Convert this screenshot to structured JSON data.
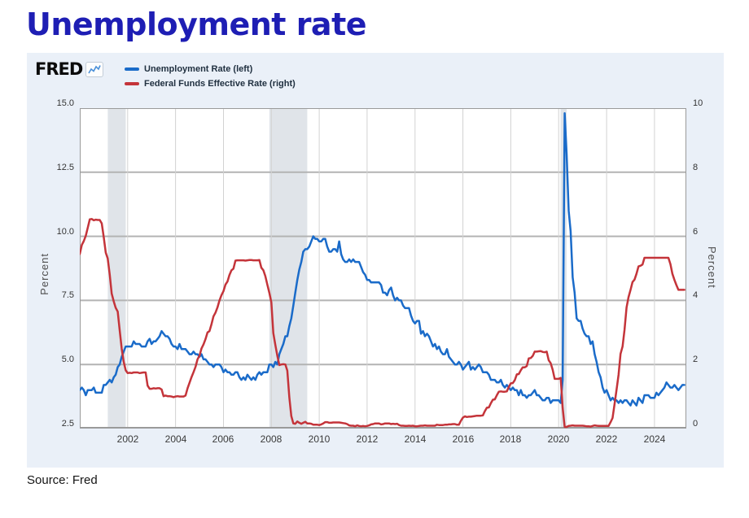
{
  "page": {
    "title": "Unemployment rate",
    "source": "Source: Fred"
  },
  "panel": {
    "logo_text": "FRED",
    "logo_icon": "sparkline-icon"
  },
  "chart_data": {
    "type": "line",
    "title": "Unemployment rate",
    "x_range": [
      2000,
      2025.33
    ],
    "points_start_year": 2000,
    "points_per_year": 12,
    "x_tick_values": [
      2002,
      2004,
      2006,
      2008,
      2010,
      2012,
      2014,
      2016,
      2018,
      2020,
      2022,
      2024
    ],
    "x_tick_labels": [
      "2002",
      "2004",
      "2006",
      "2008",
      "2010",
      "2012",
      "2014",
      "2016",
      "2018",
      "2020",
      "2022",
      "2024"
    ],
    "left_axis": {
      "label": "Percent",
      "min": 2.5,
      "max": 15.0,
      "tick_values": [
        15.0,
        12.5,
        10.0,
        7.5,
        5.0,
        2.5
      ],
      "tick_labels": [
        "15.0",
        "12.5",
        "10.0",
        "7.5",
        "5.0",
        "2.5"
      ]
    },
    "right_axis": {
      "label": "Percent",
      "min": 0,
      "max": 10,
      "tick_values": [
        10,
        8,
        6,
        4,
        2,
        0
      ],
      "tick_labels": [
        "10",
        "8",
        "6",
        "4",
        "2",
        "0"
      ]
    },
    "grid": "horizontal-and-vertical",
    "legend_position": "top-left",
    "recessions": [
      [
        2001.17,
        2001.92
      ],
      [
        2007.92,
        2009.5
      ],
      [
        2020.08,
        2020.33
      ]
    ],
    "colors": {
      "panel_bg": "#eaf0f8",
      "plot_bg": "#ffffff",
      "recession_band": "#e0e4e9",
      "hgrid": "#b3b3b3",
      "vgrid": "#d2d2d2",
      "plot_border": "#9a9a9a",
      "axis_line": "#9a9a9a",
      "title": "#1e1eb4",
      "unemployment_blue": "#1a6bc9",
      "fedfunds_red": "#c4343a"
    },
    "series": [
      {
        "name": "Unemployment Rate (left)",
        "axis": "left",
        "color": "#1a6bc9",
        "values": [
          4.0,
          4.1,
          4.0,
          3.8,
          4.0,
          4.0,
          4.0,
          4.1,
          3.9,
          3.9,
          3.9,
          3.9,
          4.2,
          4.2,
          4.3,
          4.4,
          4.3,
          4.5,
          4.6,
          4.9,
          5.0,
          5.3,
          5.5,
          5.7,
          5.7,
          5.7,
          5.7,
          5.9,
          5.8,
          5.8,
          5.8,
          5.7,
          5.7,
          5.7,
          5.9,
          6.0,
          5.8,
          5.9,
          5.9,
          6.0,
          6.1,
          6.3,
          6.2,
          6.1,
          6.1,
          6.0,
          5.8,
          5.7,
          5.7,
          5.6,
          5.8,
          5.6,
          5.6,
          5.6,
          5.5,
          5.4,
          5.4,
          5.5,
          5.4,
          5.4,
          5.3,
          5.4,
          5.2,
          5.2,
          5.1,
          5.0,
          5.0,
          4.9,
          5.0,
          5.0,
          5.0,
          4.9,
          4.7,
          4.8,
          4.7,
          4.7,
          4.6,
          4.6,
          4.7,
          4.7,
          4.5,
          4.4,
          4.5,
          4.4,
          4.6,
          4.5,
          4.4,
          4.5,
          4.4,
          4.6,
          4.7,
          4.6,
          4.7,
          4.7,
          4.7,
          5.0,
          5.0,
          4.9,
          5.1,
          5.0,
          5.4,
          5.6,
          5.8,
          6.1,
          6.1,
          6.5,
          6.8,
          7.3,
          7.8,
          8.3,
          8.7,
          9.0,
          9.4,
          9.5,
          9.5,
          9.6,
          9.8,
          10.0,
          9.9,
          9.9,
          9.8,
          9.8,
          9.9,
          9.9,
          9.6,
          9.4,
          9.4,
          9.5,
          9.5,
          9.4,
          9.8,
          9.3,
          9.1,
          9.0,
          9.0,
          9.1,
          9.0,
          9.1,
          9.0,
          9.0,
          9.0,
          8.8,
          8.6,
          8.5,
          8.3,
          8.3,
          8.2,
          8.2,
          8.2,
          8.2,
          8.2,
          8.1,
          7.8,
          7.8,
          7.7,
          7.9,
          8.0,
          7.7,
          7.5,
          7.6,
          7.5,
          7.5,
          7.3,
          7.2,
          7.2,
          7.2,
          6.9,
          6.7,
          6.6,
          6.7,
          6.7,
          6.2,
          6.3,
          6.1,
          6.2,
          6.1,
          5.9,
          5.7,
          5.8,
          5.6,
          5.7,
          5.5,
          5.4,
          5.4,
          5.6,
          5.3,
          5.2,
          5.1,
          5.0,
          5.0,
          5.1,
          5.0,
          4.8,
          4.9,
          5.0,
          5.1,
          4.8,
          4.9,
          4.8,
          4.9,
          5.0,
          4.9,
          4.7,
          4.7,
          4.7,
          4.6,
          4.4,
          4.4,
          4.4,
          4.3,
          4.3,
          4.4,
          4.2,
          4.1,
          4.2,
          4.1,
          4.0,
          4.1,
          4.0,
          4.0,
          3.8,
          4.0,
          3.8,
          3.8,
          3.7,
          3.8,
          3.8,
          3.9,
          4.0,
          3.8,
          3.8,
          3.7,
          3.6,
          3.6,
          3.7,
          3.7,
          3.5,
          3.6,
          3.6,
          3.6,
          3.6,
          3.5,
          4.4,
          14.8,
          13.2,
          11.0,
          10.2,
          8.4,
          7.8,
          6.8,
          6.7,
          6.7,
          6.4,
          6.2,
          6.1,
          6.1,
          5.8,
          5.9,
          5.4,
          5.1,
          4.7,
          4.5,
          4.1,
          3.9,
          4.0,
          3.8,
          3.6,
          3.7,
          3.6,
          3.6,
          3.5,
          3.6,
          3.5,
          3.6,
          3.6,
          3.5,
          3.4,
          3.6,
          3.5,
          3.4,
          3.7,
          3.6,
          3.5,
          3.8,
          3.8,
          3.8,
          3.7,
          3.7,
          3.7,
          3.9,
          3.8,
          3.9,
          4.0,
          4.1,
          4.3,
          4.2,
          4.1,
          4.1,
          4.2,
          4.1,
          4.0,
          4.1,
          4.2,
          4.2
        ]
      },
      {
        "name": "Federal Funds Effective Rate (right)",
        "axis": "right",
        "color": "#c4343a",
        "values": [
          5.45,
          5.73,
          5.85,
          6.02,
          6.27,
          6.53,
          6.54,
          6.5,
          6.52,
          6.51,
          6.51,
          6.4,
          5.98,
          5.49,
          5.31,
          4.8,
          4.21,
          3.97,
          3.77,
          3.65,
          3.07,
          2.49,
          2.09,
          1.82,
          1.73,
          1.74,
          1.73,
          1.75,
          1.75,
          1.75,
          1.73,
          1.74,
          1.75,
          1.75,
          1.34,
          1.24,
          1.24,
          1.26,
          1.25,
          1.26,
          1.26,
          1.22,
          1.01,
          1.03,
          1.01,
          1.01,
          1.0,
          0.98,
          1.0,
          1.01,
          1.0,
          1.0,
          1.0,
          1.03,
          1.26,
          1.43,
          1.61,
          1.76,
          1.93,
          2.16,
          2.28,
          2.5,
          2.63,
          2.79,
          3.0,
          3.04,
          3.26,
          3.5,
          3.62,
          3.78,
          4.0,
          4.16,
          4.29,
          4.49,
          4.59,
          4.79,
          4.94,
          4.99,
          5.24,
          5.25,
          5.25,
          5.25,
          5.25,
          5.24,
          5.25,
          5.26,
          5.26,
          5.25,
          5.25,
          5.25,
          5.26,
          5.02,
          4.94,
          4.76,
          4.49,
          4.24,
          3.94,
          2.98,
          2.61,
          2.28,
          1.98,
          2.0,
          2.01,
          2.0,
          1.81,
          0.97,
          0.39,
          0.16,
          0.15,
          0.22,
          0.18,
          0.15,
          0.18,
          0.21,
          0.16,
          0.16,
          0.15,
          0.12,
          0.12,
          0.12,
          0.11,
          0.13,
          0.16,
          0.2,
          0.2,
          0.18,
          0.18,
          0.19,
          0.19,
          0.19,
          0.19,
          0.18,
          0.17,
          0.16,
          0.14,
          0.1,
          0.09,
          0.09,
          0.07,
          0.1,
          0.08,
          0.07,
          0.08,
          0.07,
          0.08,
          0.1,
          0.13,
          0.14,
          0.16,
          0.16,
          0.16,
          0.13,
          0.14,
          0.16,
          0.16,
          0.16,
          0.14,
          0.15,
          0.14,
          0.15,
          0.11,
          0.09,
          0.09,
          0.08,
          0.08,
          0.09,
          0.08,
          0.09,
          0.07,
          0.07,
          0.08,
          0.09,
          0.09,
          0.1,
          0.09,
          0.09,
          0.09,
          0.09,
          0.09,
          0.12,
          0.11,
          0.11,
          0.11,
          0.12,
          0.12,
          0.13,
          0.13,
          0.14,
          0.14,
          0.12,
          0.12,
          0.24,
          0.34,
          0.38,
          0.36,
          0.37,
          0.37,
          0.38,
          0.39,
          0.4,
          0.4,
          0.4,
          0.41,
          0.54,
          0.65,
          0.66,
          0.79,
          0.9,
          0.91,
          1.04,
          1.15,
          1.16,
          1.15,
          1.15,
          1.16,
          1.3,
          1.41,
          1.42,
          1.51,
          1.69,
          1.7,
          1.82,
          1.91,
          1.91,
          1.95,
          2.19,
          2.2,
          2.27,
          2.4,
          2.4,
          2.41,
          2.42,
          2.39,
          2.38,
          2.4,
          2.13,
          2.04,
          1.83,
          1.55,
          1.55,
          1.55,
          1.58,
          0.65,
          0.05,
          0.05,
          0.08,
          0.09,
          0.1,
          0.09,
          0.09,
          0.09,
          0.09,
          0.09,
          0.08,
          0.07,
          0.07,
          0.06,
          0.08,
          0.1,
          0.09,
          0.08,
          0.08,
          0.08,
          0.08,
          0.08,
          0.08,
          0.2,
          0.33,
          0.77,
          1.21,
          1.68,
          2.33,
          2.56,
          3.08,
          3.78,
          4.1,
          4.33,
          4.57,
          4.65,
          4.83,
          5.06,
          5.08,
          5.12,
          5.33,
          5.33,
          5.33,
          5.33,
          5.33,
          5.33,
          5.33,
          5.33,
          5.33,
          5.33,
          5.33,
          5.33,
          5.33,
          5.13,
          4.83,
          4.64,
          4.48,
          4.33,
          4.33,
          4.33,
          4.33
        ]
      }
    ]
  }
}
